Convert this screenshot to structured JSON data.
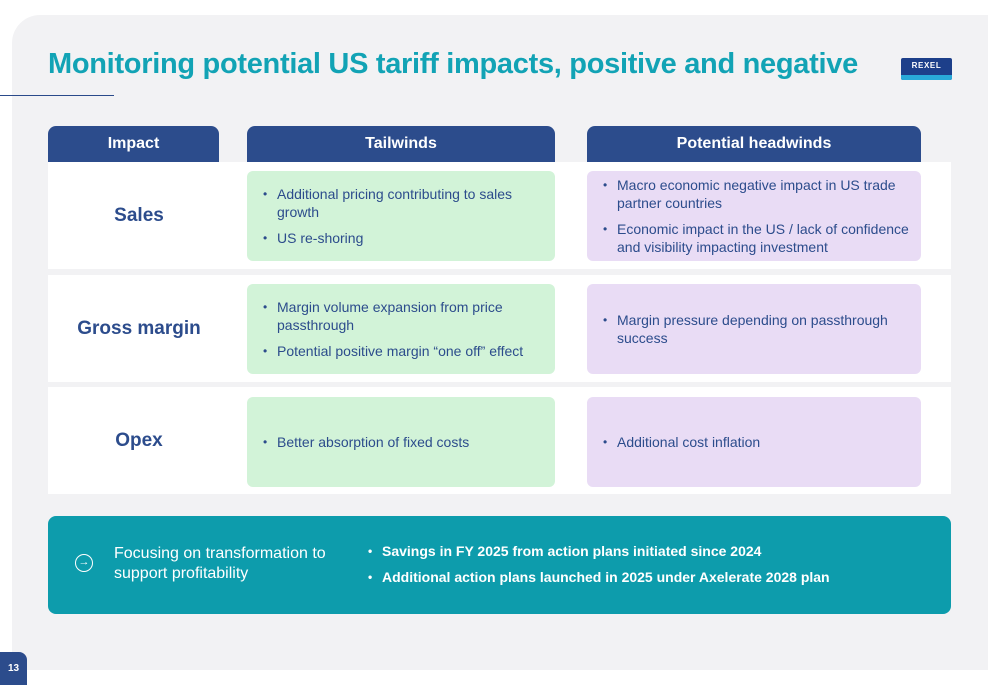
{
  "title": "Monitoring potential US tariff impacts, positive and negative",
  "logo": {
    "text": "REXEL"
  },
  "headers": {
    "impact": "Impact",
    "tailwinds": "Tailwinds",
    "headwinds": "Potential headwinds"
  },
  "rows": [
    {
      "label": "Sales",
      "tailwinds": [
        "Additional pricing contributing to sales growth",
        "US re-shoring"
      ],
      "headwinds": [
        "Macro economic negative impact in US trade partner countries",
        "Economic impact in the US / lack of confidence and visibility impacting investment"
      ]
    },
    {
      "label": "Gross margin",
      "tailwinds": [
        "Margin volume expansion from price passthrough",
        "Potential positive margin “one off” effect"
      ],
      "headwinds": [
        "Margin pressure depending on passthrough success"
      ]
    },
    {
      "label": "Opex",
      "tailwinds": [
        "Better absorption of fixed costs"
      ],
      "headwinds": [
        "Additional cost inflation"
      ]
    }
  ],
  "focus": {
    "label": "Focusing on transformation to support profitability",
    "points": [
      "Savings in FY 2025 from action plans initiated since 2024",
      "Additional action plans launched in 2025 under Axelerate 2028 plan"
    ]
  },
  "page_number": "13",
  "colors": {
    "accent": "#12a3b5",
    "navy": "#2c4c8c",
    "tailwind_bg": "#d2f3d8",
    "headwind_bg": "#e9dcf5",
    "focus_bg": "#0d9cac"
  }
}
